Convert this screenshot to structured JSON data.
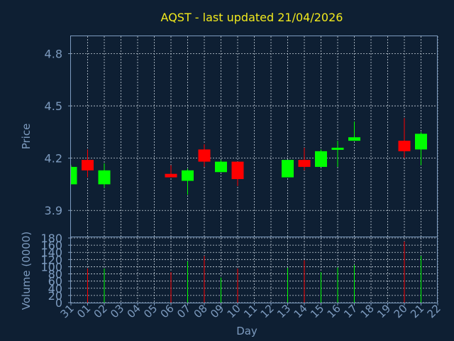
{
  "chart_data": {
    "type": "candlestick",
    "title": "AQST - last updated 21/04/2026",
    "xlabel": "Day",
    "price_panel": {
      "ylabel": "Price",
      "ylim": [
        3.75,
        4.9
      ],
      "yticks": [
        "3.9",
        "4.2",
        "4.5",
        "4.8"
      ],
      "grid": true
    },
    "volume_panel": {
      "ylabel": "Volume (0000)",
      "ylim": [
        0,
        180
      ],
      "yticks": [
        "0",
        "20",
        "40",
        "60",
        "80",
        "100",
        "120",
        "140",
        "160",
        "180"
      ],
      "grid": true
    },
    "x_ticks": [
      "31",
      "01",
      "02",
      "03",
      "04",
      "05",
      "06",
      "07",
      "08",
      "09",
      "10",
      "11",
      "12",
      "13",
      "14",
      "15",
      "16",
      "17",
      "18",
      "19",
      "20",
      "21",
      "22"
    ],
    "candles": [
      {
        "day": "31",
        "open": 4.05,
        "high": 4.16,
        "low": 4.05,
        "close": 4.15,
        "volume": 0
      },
      {
        "day": "01",
        "open": 4.19,
        "high": 4.25,
        "low": 4.09,
        "close": 4.13,
        "volume": 95
      },
      {
        "day": "02",
        "open": 4.05,
        "high": 4.17,
        "low": 4.03,
        "close": 4.13,
        "volume": 95
      },
      {
        "day": "06",
        "open": 4.11,
        "high": 4.16,
        "low": 4.09,
        "close": 4.09,
        "volume": 85
      },
      {
        "day": "07",
        "open": 4.07,
        "high": 4.14,
        "low": 3.99,
        "close": 4.13,
        "volume": 115
      },
      {
        "day": "08",
        "open": 4.25,
        "high": 4.28,
        "low": 4.15,
        "close": 4.18,
        "volume": 130
      },
      {
        "day": "09",
        "open": 4.12,
        "high": 4.19,
        "low": 4.12,
        "close": 4.18,
        "volume": 70
      },
      {
        "day": "10",
        "open": 4.18,
        "high": 4.18,
        "low": 4.04,
        "close": 4.08,
        "volume": 95
      },
      {
        "day": "13",
        "open": 4.09,
        "high": 4.19,
        "low": 4.09,
        "close": 4.19,
        "volume": 97
      },
      {
        "day": "14",
        "open": 4.19,
        "high": 4.26,
        "low": 4.13,
        "close": 4.15,
        "volume": 118
      },
      {
        "day": "15",
        "open": 4.15,
        "high": 4.25,
        "low": 4.15,
        "close": 4.24,
        "volume": 85
      },
      {
        "day": "16",
        "open": 4.25,
        "high": 4.3,
        "low": 4.15,
        "close": 4.26,
        "volume": 98
      },
      {
        "day": "17",
        "open": 4.3,
        "high": 4.41,
        "low": 4.3,
        "close": 4.32,
        "volume": 105
      },
      {
        "day": "20",
        "open": 4.3,
        "high": 4.43,
        "low": 4.2,
        "close": 4.24,
        "volume": 170
      },
      {
        "day": "21",
        "open": 4.25,
        "high": 4.35,
        "low": 4.16,
        "close": 4.34,
        "volume": 130
      }
    ],
    "colors": {
      "up": "#00ff00",
      "down": "#ff0000",
      "background": "#0e1f33",
      "axis_text": "#7d9bbf",
      "title": "#f2ea1d",
      "grid": "#c8d2dc"
    }
  }
}
